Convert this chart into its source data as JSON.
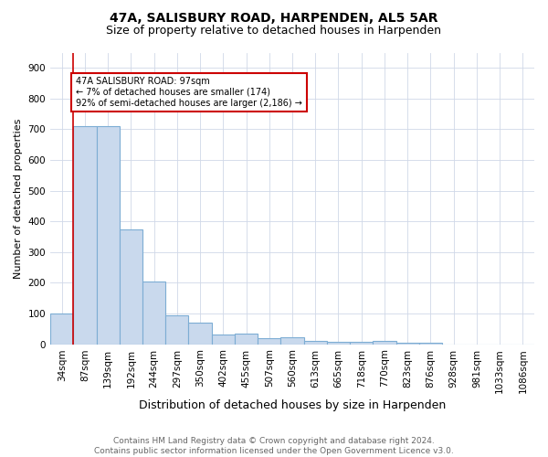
{
  "title1": "47A, SALISBURY ROAD, HARPENDEN, AL5 5AR",
  "title2": "Size of property relative to detached houses in Harpenden",
  "xlabel": "Distribution of detached houses by size in Harpenden",
  "ylabel": "Number of detached properties",
  "categories": [
    "34sqm",
    "87sqm",
    "139sqm",
    "192sqm",
    "244sqm",
    "297sqm",
    "350sqm",
    "402sqm",
    "455sqm",
    "507sqm",
    "560sqm",
    "613sqm",
    "665sqm",
    "718sqm",
    "770sqm",
    "823sqm",
    "876sqm",
    "928sqm",
    "981sqm",
    "1033sqm",
    "1086sqm"
  ],
  "values": [
    100,
    710,
    710,
    375,
    205,
    95,
    70,
    30,
    33,
    20,
    22,
    10,
    7,
    7,
    10,
    5,
    5,
    0,
    0,
    0,
    0
  ],
  "bar_color": "#c9d9ed",
  "bar_edge_color": "#7dadd4",
  "bar_linewidth": 0.8,
  "vline_x": 0.5,
  "vline_color": "#cc0000",
  "vline_linewidth": 1.2,
  "annotation_text": "47A SALISBURY ROAD: 97sqm\n← 7% of detached houses are smaller (174)\n92% of semi-detached houses are larger (2,186) →",
  "annotation_box_color": "#ffffff",
  "annotation_box_edgecolor": "#cc0000",
  "ylim": [
    0,
    950
  ],
  "yticks": [
    0,
    100,
    200,
    300,
    400,
    500,
    600,
    700,
    800,
    900
  ],
  "footnote": "Contains HM Land Registry data © Crown copyright and database right 2024.\nContains public sector information licensed under the Open Government Licence v3.0.",
  "bg_color": "#ffffff",
  "grid_color": "#d0d8e8",
  "title1_fontsize": 10,
  "title2_fontsize": 9,
  "xlabel_fontsize": 9,
  "ylabel_fontsize": 8,
  "tick_fontsize": 7.5,
  "footnote_fontsize": 6.5
}
